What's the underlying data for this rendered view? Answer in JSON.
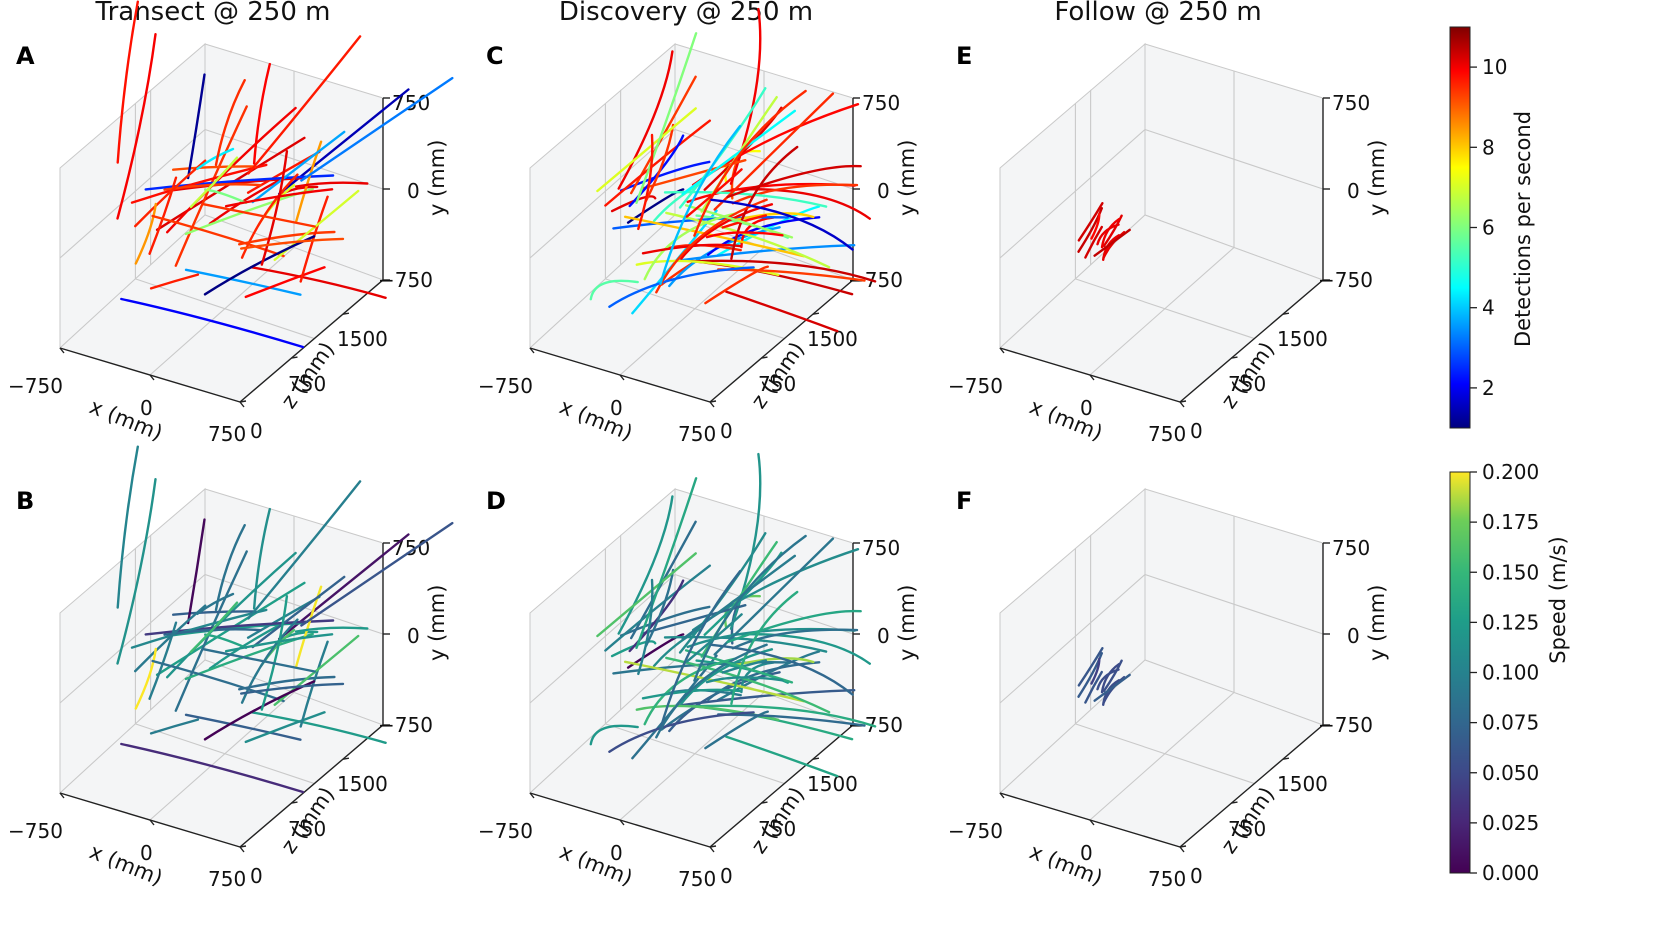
{
  "chart_data": [
    {
      "panel": "A",
      "type": "scatter",
      "title": "Transect @ 250 m",
      "color_by": "detections",
      "xlabel": "x (mm)",
      "ylabel": "y (mm)",
      "zlabel": "z (mm)",
      "xticks": [
        "−750",
        "0",
        "750"
      ],
      "yticks": [
        "750",
        "0",
        "−750"
      ],
      "zticks": [
        "1500",
        "750",
        "0"
      ],
      "xlim": [
        -750,
        750
      ],
      "ylim": [
        -750,
        750
      ],
      "zlim": [
        0,
        2000
      ],
      "grid": true
    },
    {
      "panel": "B",
      "type": "scatter",
      "title": "",
      "color_by": "speed",
      "xlabel": "x (mm)",
      "ylabel": "y (mm)",
      "zlabel": "z (mm)",
      "xticks": [
        "−750",
        "0",
        "750"
      ],
      "yticks": [
        "750",
        "0",
        "−750"
      ],
      "zticks": [
        "1500",
        "750",
        "0"
      ],
      "xlim": [
        -750,
        750
      ],
      "ylim": [
        -750,
        750
      ],
      "zlim": [
        0,
        2000
      ],
      "grid": true
    },
    {
      "panel": "C",
      "type": "scatter",
      "title": "Discovery @ 250 m",
      "color_by": "detections",
      "xlabel": "x (mm)",
      "ylabel": "y (mm)",
      "zlabel": "z (mm)",
      "xticks": [
        "−750",
        "0",
        "750"
      ],
      "yticks": [
        "750",
        "0",
        "−750"
      ],
      "zticks": [
        "1500",
        "750",
        "0"
      ],
      "xlim": [
        -750,
        750
      ],
      "ylim": [
        -750,
        750
      ],
      "zlim": [
        0,
        2000
      ],
      "grid": true
    },
    {
      "panel": "D",
      "type": "scatter",
      "title": "",
      "color_by": "speed",
      "xlabel": "x (mm)",
      "ylabel": "y (mm)",
      "zlabel": "z (mm)",
      "xticks": [
        "−750",
        "0",
        "750"
      ],
      "yticks": [
        "750",
        "0",
        "−750"
      ],
      "zticks": [
        "1500",
        "750",
        "0"
      ],
      "xlim": [
        -750,
        750
      ],
      "ylim": [
        -750,
        750
      ],
      "zlim": [
        0,
        2000
      ],
      "grid": true
    },
    {
      "panel": "E",
      "type": "scatter",
      "title": "Follow @ 250 m",
      "color_by": "detections",
      "xlabel": "x (mm)",
      "ylabel": "y (mm)",
      "zlabel": "z (mm)",
      "xticks": [
        "−750",
        "0",
        "750"
      ],
      "yticks": [
        "750",
        "0",
        "−750"
      ],
      "zticks": [
        "1500",
        "750",
        "0"
      ],
      "xlim": [
        -750,
        750
      ],
      "ylim": [
        -750,
        750
      ],
      "zlim": [
        0,
        2000
      ],
      "grid": true
    },
    {
      "panel": "F",
      "type": "scatter",
      "title": "",
      "color_by": "speed",
      "xlabel": "x (mm)",
      "ylabel": "y (mm)",
      "zlabel": "z (mm)",
      "xticks": [
        "−750",
        "0",
        "750"
      ],
      "yticks": [
        "750",
        "0",
        "−750"
      ],
      "zticks": [
        "1500",
        "750",
        "0"
      ],
      "xlim": [
        -750,
        750
      ],
      "ylim": [
        -750,
        750
      ],
      "zlim": [
        0,
        2000
      ],
      "grid": true
    }
  ],
  "colorbars": {
    "detections": {
      "label": "Detections per second",
      "colormap": "jet",
      "range": [
        1,
        11
      ],
      "ticks": [
        {
          "value": 2,
          "label": "2"
        },
        {
          "value": 4,
          "label": "4"
        },
        {
          "value": 6,
          "label": "6"
        },
        {
          "value": 8,
          "label": "8"
        },
        {
          "value": 10,
          "label": "10"
        }
      ]
    },
    "speed": {
      "label": "Speed (m/s)",
      "colormap": "viridis",
      "range": [
        0,
        0.2
      ],
      "ticks": [
        {
          "value": 0.0,
          "label": "0.000"
        },
        {
          "value": 0.025,
          "label": "0.025"
        },
        {
          "value": 0.05,
          "label": "0.050"
        },
        {
          "value": 0.075,
          "label": "0.075"
        },
        {
          "value": 0.1,
          "label": "0.100"
        },
        {
          "value": 0.125,
          "label": "0.125"
        },
        {
          "value": 0.15,
          "label": "0.150"
        },
        {
          "value": 0.175,
          "label": "0.175"
        },
        {
          "value": 0.2,
          "label": "0.200"
        }
      ]
    }
  },
  "colors": {
    "pane_fill": "#f4f5f6",
    "grid": "#c9c9c9",
    "axis": "#222222"
  }
}
